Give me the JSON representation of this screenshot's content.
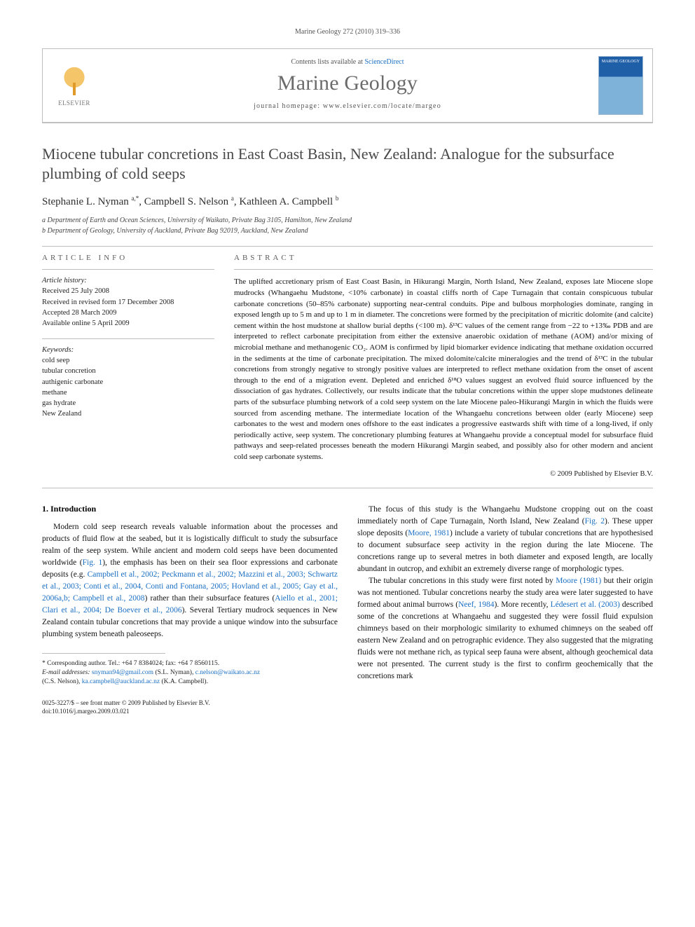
{
  "running_header": "Marine Geology 272 (2010) 319–336",
  "header": {
    "contents_prefix": "Contents lists available at ",
    "contents_link": "ScienceDirect",
    "journal_name": "Marine Geology",
    "homepage_prefix": "journal homepage: ",
    "homepage_url": "www.elsevier.com/locate/margeo",
    "logo_left_text": "ELSEVIER",
    "cover_text": "MARINE GEOLOGY"
  },
  "title": "Miocene tubular concretions in East Coast Basin, New Zealand: Analogue for the subsurface plumbing of cold seeps",
  "authors_html": "Stephanie L. Nyman <sup>a,*</sup>, Campbell S. Nelson <sup>a</sup>, Kathleen A. Campbell <sup>b</sup>",
  "affiliations": [
    "a Department of Earth and Ocean Sciences, University of Waikato, Private Bag 3105, Hamilton, New Zealand",
    "b Department of Geology, University of Auckland, Private Bag 92019, Auckland, New Zealand"
  ],
  "article_info_label": "ARTICLE INFO",
  "abstract_label": "ABSTRACT",
  "history": {
    "head": "Article history:",
    "lines": [
      "Received 25 July 2008",
      "Received in revised form 17 December 2008",
      "Accepted 28 March 2009",
      "Available online 5 April 2009"
    ]
  },
  "keywords": {
    "head": "Keywords:",
    "lines": [
      "cold seep",
      "tubular concretion",
      "authigenic carbonate",
      "methane",
      "gas hydrate",
      "New Zealand"
    ]
  },
  "abstract": "The uplifted accretionary prism of East Coast Basin, in Hikurangi Margin, North Island, New Zealand, exposes late Miocene slope mudrocks (Whangaehu Mudstone, <10% carbonate) in coastal cliffs north of Cape Turnagain that contain conspicuous tubular carbonate concretions (50–85% carbonate) supporting near-central conduits. Pipe and bulbous morphologies dominate, ranging in exposed length up to 5 m and up to 1 m in diameter. The concretions were formed by the precipitation of micritic dolomite (and calcite) cement within the host mudstone at shallow burial depths (<100 m). δ¹³C values of the cement range from −22 to +13‰ PDB and are interpreted to reflect carbonate precipitation from either the extensive anaerobic oxidation of methane (AOM) and/or mixing of microbial methane and methanogenic CO₂. AOM is confirmed by lipid biomarker evidence indicating that methane oxidation occurred in the sediments at the time of carbonate precipitation. The mixed dolomite/calcite mineralogies and the trend of δ¹³C in the tubular concretions from strongly negative to strongly positive values are interpreted to reflect methane oxidation from the onset of ascent through to the end of a migration event. Depleted and enriched δ¹⁸O values suggest an evolved fluid source influenced by the dissociation of gas hydrates. Collectively, our results indicate that the tubular concretions within the upper slope mudstones delineate parts of the subsurface plumbing network of a cold seep system on the late Miocene paleo-Hikurangi Margin in which the fluids were sourced from ascending methane. The intermediate location of the Whangaehu concretions between older (early Miocene) seep carbonates to the west and modern ones offshore to the east indicates a progressive eastwards shift with time of a long-lived, if only periodically active, seep system. The concretionary plumbing features at Whangaehu provide a conceptual model for subsurface fluid pathways and seep-related processes beneath the modern Hikurangi Margin seabed, and possibly also for other modern and ancient cold seep carbonate systems.",
  "copyright": "© 2009 Published by Elsevier B.V.",
  "section1_heading": "1. Introduction",
  "body_left_p1_pre": "Modern cold seep research reveals valuable information about the processes and products of fluid flow at the seabed, but it is logistically difficult to study the subsurface realm of the seep system. While ancient and modern cold seeps have been documented worldwide (",
  "body_left_fig1": "Fig. 1",
  "body_left_p1_mid": "), the emphasis has been on their sea floor expressions and carbonate deposits (e.g. ",
  "body_left_refs1": "Campbell et al., 2002; Peckmann et al., 2002; Mazzini et al., 2003; Schwartz et al., 2003; Conti et al., 2004, Conti and Fontana, 2005; Hovland et al., 2005; Gay et al., 2006a,b; Campbell et al., 2008",
  "body_left_p1_mid2": ") rather than their subsurface features (",
  "body_left_refs2": "Aiello et al., 2001; Clari et al., 2004; De Boever et al., 2006",
  "body_left_p1_post": "). Several Tertiary mudrock sequences in New Zealand contain tubular concretions that may provide a unique window into the subsurface plumbing system beneath paleoseeps.",
  "body_right_p1_pre": "The focus of this study is the Whangaehu Mudstone cropping out on the coast immediately north of Cape Turnagain, North Island, New Zealand (",
  "body_right_fig2": "Fig. 2",
  "body_right_p1_mid": "). These upper slope deposits (",
  "body_right_ref_moore": "Moore, 1981",
  "body_right_p1_post": ") include a variety of tubular concretions that are hypothesised to document subsurface seep activity in the region during the late Miocene. The concretions range up to several metres in both diameter and exposed length, are locally abundant in outcrop, and exhibit an extremely diverse range of morphologic types.",
  "body_right_p2_pre": "The tubular concretions in this study were first noted by ",
  "body_right_ref_moore2": "Moore (1981)",
  "body_right_p2_mid": " but their origin was not mentioned. Tubular concretions nearby the study area were later suggested to have formed about animal burrows (",
  "body_right_ref_neef": "Neef, 1984",
  "body_right_p2_mid2": "). More recently, ",
  "body_right_ref_ledesert": "Lédesert et al. (2003)",
  "body_right_p2_post": " described some of the concretions at Whangaehu and suggested they were fossil fluid expulsion chimneys based on their morphologic similarity to exhumed chimneys on the seabed off eastern New Zealand and on petrographic evidence. They also suggested that the migrating fluids were not methane rich, as typical seep fauna were absent, although geochemical data were not presented. The current study is the first to confirm geochemically that the concretions mark",
  "footnote": {
    "corr": "* Corresponding author. Tel.: +64 7 8384024; fax: +64 7 8560115.",
    "emails_label": "E-mail addresses: ",
    "email1": "snyman94@gmail.com",
    "e1_who": " (S.L. Nyman), ",
    "email2": "c.nelson@waikato.ac.nz",
    "e2_who": " (C.S. Nelson), ",
    "email3": "ka.campbell@auckland.ac.nz",
    "e3_who": " (K.A. Campbell)."
  },
  "footer": {
    "line1": "0025-3227/$ – see front matter © 2009 Published by Elsevier B.V.",
    "line2": "doi:10.1016/j.margeo.2009.03.021"
  },
  "colors": {
    "link": "#1a6fc4",
    "text": "#111111",
    "rule": "#bdbdbd",
    "journal_gray": "#6b6b6b"
  }
}
